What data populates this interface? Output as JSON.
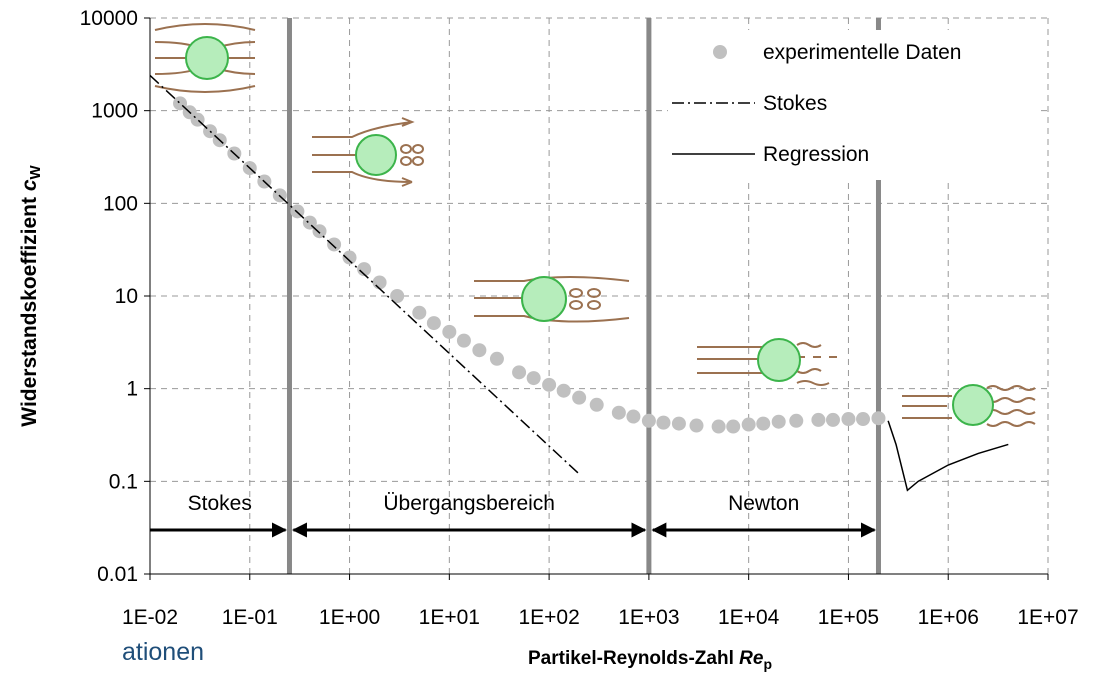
{
  "chart_data": {
    "type": "scatter-line",
    "y_label": "Widerstandskoeffizient",
    "y_label_symbol": "c",
    "y_label_subscript": "W",
    "x_label": "Partikel-Reynolds-Zahl",
    "x_label_symbol": "Re",
    "x_label_subscript": "p",
    "footer_fragment": "ationen",
    "x_log": true,
    "y_log": true,
    "grid": true,
    "legend": "top-right",
    "xlim": [
      0.01,
      10000000
    ],
    "ylim": [
      0.01,
      10000
    ],
    "xticks": [
      {
        "value": 0.01,
        "label": "1E-02"
      },
      {
        "value": 0.1,
        "label": "1E-01"
      },
      {
        "value": 1,
        "label": "1E+00"
      },
      {
        "value": 10,
        "label": "1E+01"
      },
      {
        "value": 100,
        "label": "1E+02"
      },
      {
        "value": 1000,
        "label": "1E+03"
      },
      {
        "value": 10000,
        "label": "1E+04"
      },
      {
        "value": 100000,
        "label": "1E+05"
      },
      {
        "value": 1000000,
        "label": "1E+06"
      },
      {
        "value": 10000000,
        "label": "1E+07"
      }
    ],
    "yticks": [
      0.01,
      0.1,
      1,
      10,
      100,
      1000,
      10000
    ],
    "boundaries": [
      0.25,
      1000,
      200000
    ],
    "regions": [
      {
        "label": "Stokes",
        "from": 0.01,
        "to": 0.25
      },
      {
        "label": "Übergangsbereich",
        "from": 0.25,
        "to": 1000
      },
      {
        "label": "Newton",
        "from": 1000,
        "to": 200000
      }
    ],
    "series": [
      {
        "name": "experimentelle Daten",
        "style": "dots",
        "color": "#c0c0c0",
        "x": [
          0.02,
          0.025,
          0.03,
          0.04,
          0.05,
          0.07,
          0.1,
          0.14,
          0.2,
          0.3,
          0.4,
          0.5,
          0.7,
          1,
          1.4,
          2,
          3,
          5,
          7,
          10,
          14,
          20,
          30,
          50,
          70,
          100,
          140,
          200,
          300,
          500,
          700,
          1000,
          1400,
          2000,
          3000,
          5000,
          7000,
          10000,
          14000,
          20000,
          30000,
          50000,
          70000,
          100000,
          140000,
          200000
        ],
        "values": [
          1200,
          960,
          800,
          600,
          480,
          345,
          240,
          172,
          122,
          82,
          62,
          50,
          36,
          26,
          19.5,
          14,
          10,
          6.6,
          5.1,
          4.1,
          3.3,
          2.6,
          2.1,
          1.5,
          1.3,
          1.1,
          0.95,
          0.8,
          0.67,
          0.55,
          0.5,
          0.45,
          0.43,
          0.42,
          0.4,
          0.39,
          0.39,
          0.41,
          0.42,
          0.44,
          0.45,
          0.46,
          0.46,
          0.47,
          0.47,
          0.48
        ]
      },
      {
        "name": "Stokes",
        "style": "dashdot",
        "color": "#000000",
        "x": [
          0.01,
          200
        ],
        "values": [
          2400,
          0.12
        ]
      },
      {
        "name": "Regression",
        "style": "solid",
        "color": "#000000",
        "x": [
          250000,
          300000,
          390000,
          500000,
          1000000,
          2000000,
          4000000
        ],
        "values": [
          0.45,
          0.25,
          0.08,
          0.1,
          0.15,
          0.2,
          0.25
        ]
      }
    ]
  }
}
